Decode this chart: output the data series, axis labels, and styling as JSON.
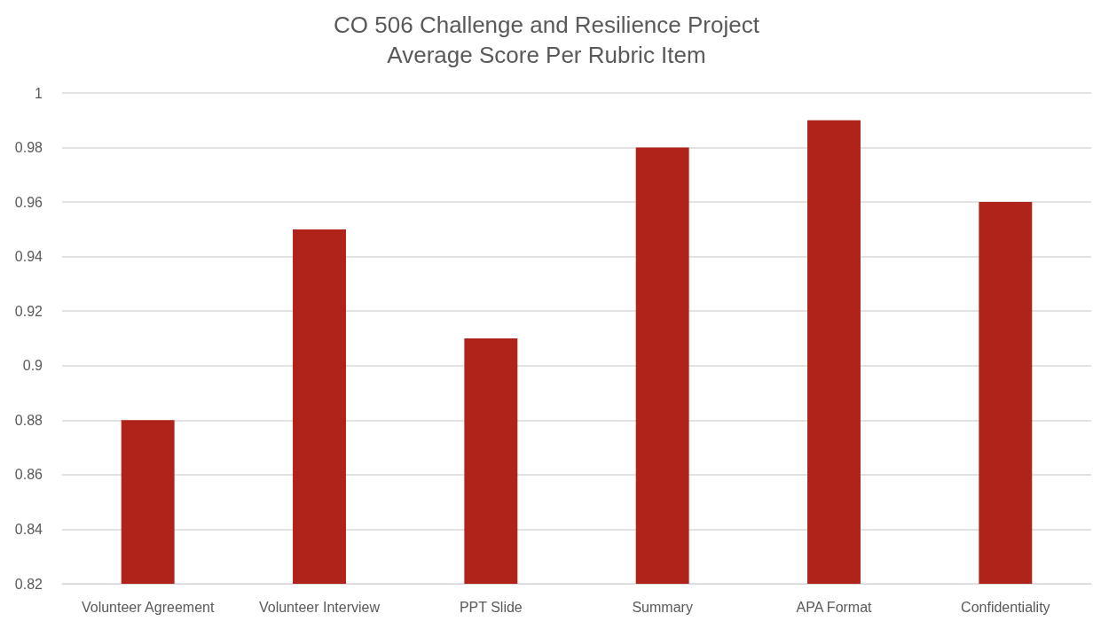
{
  "chart_data": {
    "type": "bar",
    "title": "CO 506 Challenge and Resilience Project\nAverage Score Per Rubric Item",
    "categories": [
      "Volunteer Agreement",
      "Volunteer Interview",
      "PPT Slide",
      "Summary",
      "APA Format",
      "Confidentiality"
    ],
    "values": [
      0.88,
      0.95,
      0.91,
      0.98,
      0.99,
      0.96
    ],
    "color": "#b0231a",
    "ylim": [
      0.82,
      1
    ],
    "yticks": [
      0.82,
      0.84,
      0.86,
      0.88,
      0.9,
      0.92,
      0.94,
      0.96,
      0.98,
      1
    ],
    "grid": true
  }
}
